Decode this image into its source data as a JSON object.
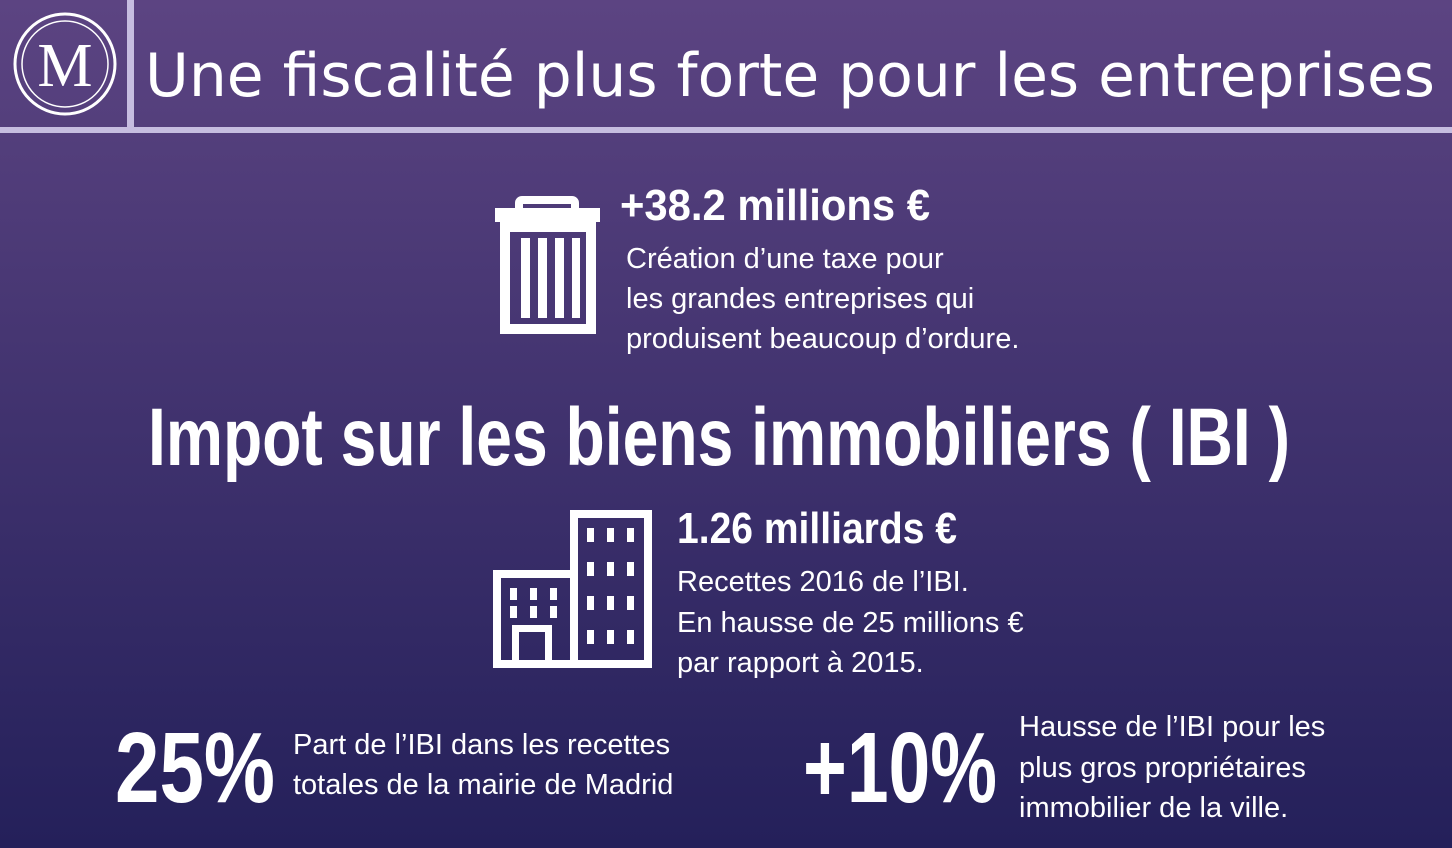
{
  "header": {
    "logo": "M",
    "title": "Une fiscalité plus forte pour les entreprises"
  },
  "waste_tax": {
    "amount": "+38.2 millions €",
    "lines": [
      "Création d’une taxe pour",
      "les grandes entreprises qui",
      "produisent beaucoup d’ordure."
    ]
  },
  "section_title": "Impot sur les biens immobiliers ( IBI )",
  "ibi_revenue": {
    "amount": "1.26 milliards €",
    "lines": [
      "Recettes 2016 de l’IBI.",
      "En hausse de 25 millions €",
      "par rapport à 2015."
    ]
  },
  "stats": [
    {
      "figure": "25%",
      "lines": [
        "Part de l’IBI dans les recettes",
        "totales de la mairie de Madrid"
      ]
    },
    {
      "figure": "+10%",
      "lines": [
        "Hausse de l’IBI pour les",
        "plus gros propriétaires",
        "immobilier de la ville."
      ]
    }
  ]
}
